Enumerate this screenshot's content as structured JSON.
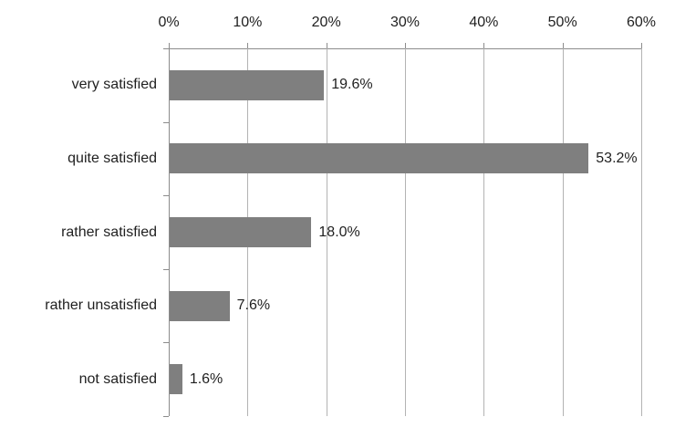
{
  "chart_data": {
    "type": "bar",
    "orientation": "horizontal",
    "title": "",
    "xlabel": "",
    "ylabel": "",
    "categories": [
      "very satisfied",
      "quite satisfied",
      "rather satisfied",
      "rather unsatisfied",
      "not satisfied"
    ],
    "values": [
      19.6,
      53.2,
      18.0,
      7.6,
      1.6
    ],
    "value_labels": [
      "19.6%",
      "53.2%",
      "18.0%",
      "7.6%",
      "1.6%"
    ],
    "x_tick_values": [
      0,
      10,
      20,
      30,
      40,
      50,
      60
    ],
    "x_tick_labels": [
      "0%",
      "10%",
      "20%",
      "30%",
      "40%",
      "50%",
      "60%"
    ],
    "xlim": [
      0,
      60
    ],
    "grid": "vertical",
    "legend": "none",
    "value_axis_position": "top",
    "category_axis_position": "left",
    "colors": {
      "bar": "#7f7f7f",
      "gridline": "#b3b3b3",
      "axis": "#8c8c8c",
      "text": "#1f1f1f",
      "background": "#ffffff"
    }
  }
}
